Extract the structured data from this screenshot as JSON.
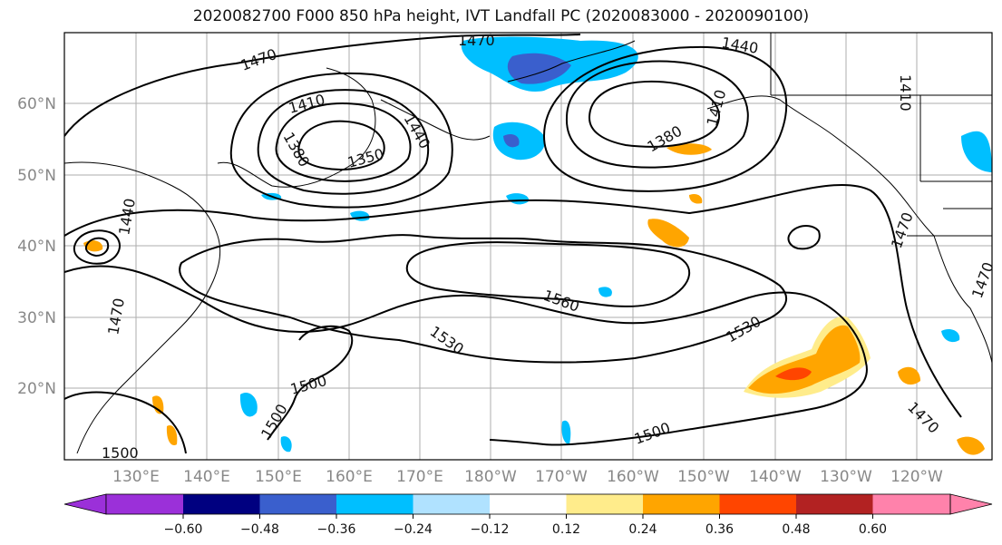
{
  "title": "2020082700 F000 850 hPa height, IVT Landfall PC (2020083000 - 2020090100)",
  "map": {
    "lon_labels": [
      "130°E",
      "140°E",
      "150°E",
      "160°E",
      "170°E",
      "180°W",
      "170°W",
      "160°W",
      "150°W",
      "140°W",
      "130°W",
      "120°W"
    ],
    "lat_labels": [
      "60°N",
      "50°N",
      "40°N",
      "30°N",
      "20°N"
    ],
    "contour_labels": [
      "1470",
      "1470",
      "1440",
      "1410",
      "1440",
      "1380",
      "1350",
      "1410",
      "1380",
      "1410",
      "1440",
      "1470",
      "1470",
      "1560",
      "1530",
      "1530",
      "1500",
      "1500",
      "1500",
      "1470",
      "1500",
      "1470"
    ]
  },
  "colorbar": {
    "ticks": [
      "−0.60",
      "−0.48",
      "−0.36",
      "−0.24",
      "−0.12",
      "0.12",
      "0.24",
      "0.36",
      "0.48",
      "0.60"
    ],
    "colors": [
      "#9b30d9",
      "#000080",
      "#3a5fcd",
      "#00bfff",
      "#b0e2ff",
      "#ffffff",
      "#ffec8b",
      "#ffa500",
      "#ff4500",
      "#b22222",
      "#ff82ab"
    ]
  }
}
